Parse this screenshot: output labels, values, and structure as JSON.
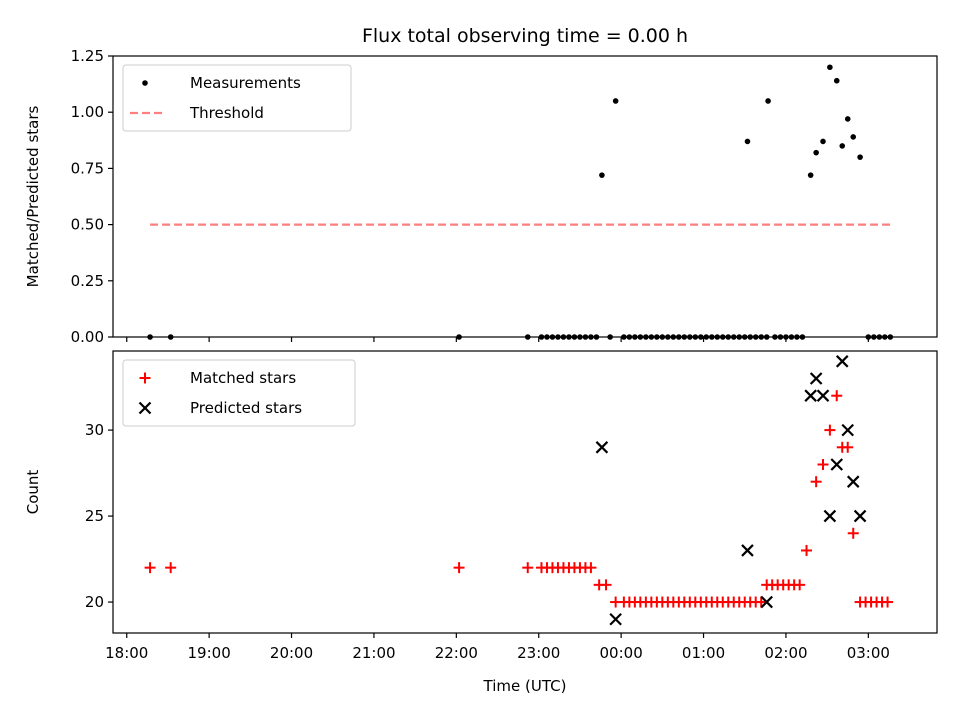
{
  "chart_data": [
    {
      "type": "scatter",
      "title": "Flux total observing time = 0.00 h",
      "xlabel": "",
      "ylabel": "Matched/Predicted stars",
      "xlim": [
        "17:50",
        "03:50"
      ],
      "ylim": [
        0,
        1.25
      ],
      "yticks": [
        "0.00",
        "0.25",
        "0.50",
        "0.75",
        "1.00",
        "1.25"
      ],
      "legend": {
        "placement": "upper-left",
        "entries": [
          "Measurements",
          "Threshold"
        ]
      },
      "colors": {
        "measurements": "#000000",
        "threshold": "#ff7f7f"
      },
      "series": [
        {
          "name": "Measurements",
          "marker": "dot",
          "points": [
            [
              "18:17",
              0
            ],
            [
              "18:32",
              0
            ],
            [
              "22:02",
              0
            ],
            [
              "22:52",
              0
            ],
            [
              "23:02",
              0
            ],
            [
              "23:06",
              0
            ],
            [
              "23:10",
              0
            ],
            [
              "23:14",
              0
            ],
            [
              "23:18",
              0
            ],
            [
              "23:22",
              0
            ],
            [
              "23:26",
              0
            ],
            [
              "23:30",
              0
            ],
            [
              "23:34",
              0
            ],
            [
              "23:38",
              0
            ],
            [
              "23:42",
              0
            ],
            [
              "23:46",
              0.72
            ],
            [
              "23:52",
              0
            ],
            [
              "23:56",
              1.05
            ],
            [
              "00:02",
              0
            ],
            [
              "00:06",
              0
            ],
            [
              "00:10",
              0
            ],
            [
              "00:14",
              0
            ],
            [
              "00:18",
              0
            ],
            [
              "00:22",
              0
            ],
            [
              "00:26",
              0
            ],
            [
              "00:30",
              0
            ],
            [
              "00:34",
              0
            ],
            [
              "00:38",
              0
            ],
            [
              "00:42",
              0
            ],
            [
              "00:46",
              0
            ],
            [
              "00:50",
              0
            ],
            [
              "00:54",
              0
            ],
            [
              "00:58",
              0
            ],
            [
              "01:02",
              0
            ],
            [
              "01:06",
              0
            ],
            [
              "01:10",
              0
            ],
            [
              "01:14",
              0
            ],
            [
              "01:18",
              0
            ],
            [
              "01:22",
              0
            ],
            [
              "01:26",
              0
            ],
            [
              "01:30",
              0
            ],
            [
              "01:34",
              0
            ],
            [
              "01:38",
              0
            ],
            [
              "01:32",
              0.87
            ],
            [
              "01:42",
              0
            ],
            [
              "01:46",
              0
            ],
            [
              "01:47",
              1.05
            ],
            [
              "01:52",
              0
            ],
            [
              "01:56",
              0
            ],
            [
              "02:00",
              0
            ],
            [
              "02:04",
              0
            ],
            [
              "02:08",
              0
            ],
            [
              "02:12",
              0
            ],
            [
              "02:18",
              0.72
            ],
            [
              "02:22",
              0.82
            ],
            [
              "02:27",
              0.87
            ],
            [
              "02:32",
              1.2
            ],
            [
              "02:37",
              1.14
            ],
            [
              "02:41",
              0.85
            ],
            [
              "02:45",
              0.97
            ],
            [
              "02:49",
              0.89
            ],
            [
              "02:54",
              0.8
            ],
            [
              "03:00",
              0
            ],
            [
              "03:04",
              0
            ],
            [
              "03:08",
              0
            ],
            [
              "03:12",
              0
            ],
            [
              "03:16",
              0
            ]
          ]
        },
        {
          "name": "Threshold",
          "marker": "dashed-line",
          "points": [
            [
              "18:17",
              0.5
            ],
            [
              "03:16",
              0.5
            ]
          ]
        }
      ]
    },
    {
      "type": "scatter",
      "title": "",
      "xlabel": "Time (UTC)",
      "ylabel": "Count",
      "xlim": [
        "17:50",
        "03:50"
      ],
      "ylim": [
        18.2,
        34.6
      ],
      "yticks": [
        "20",
        "25",
        "30"
      ],
      "xticks": [
        "18:00",
        "19:00",
        "20:00",
        "21:00",
        "22:00",
        "23:00",
        "00:00",
        "01:00",
        "02:00",
        "03:00"
      ],
      "legend": {
        "placement": "upper-left",
        "entries": [
          "Matched stars",
          "Predicted stars"
        ]
      },
      "colors": {
        "matched": "#ff0000",
        "predicted": "#000000"
      },
      "series": [
        {
          "name": "Matched stars",
          "marker": "plus",
          "points": [
            [
              "18:17",
              22
            ],
            [
              "18:32",
              22
            ],
            [
              "22:02",
              22
            ],
            [
              "22:52",
              22
            ],
            [
              "23:02",
              22
            ],
            [
              "23:06",
              22
            ],
            [
              "23:10",
              22
            ],
            [
              "23:14",
              22
            ],
            [
              "23:18",
              22
            ],
            [
              "23:22",
              22
            ],
            [
              "23:26",
              22
            ],
            [
              "23:30",
              22
            ],
            [
              "23:34",
              22
            ],
            [
              "23:38",
              22
            ],
            [
              "23:44",
              21
            ],
            [
              "23:49",
              21
            ],
            [
              "23:56",
              20
            ],
            [
              "00:02",
              20
            ],
            [
              "00:06",
              20
            ],
            [
              "00:10",
              20
            ],
            [
              "00:14",
              20
            ],
            [
              "00:18",
              20
            ],
            [
              "00:22",
              20
            ],
            [
              "00:26",
              20
            ],
            [
              "00:30",
              20
            ],
            [
              "00:34",
              20
            ],
            [
              "00:38",
              20
            ],
            [
              "00:42",
              20
            ],
            [
              "00:46",
              20
            ],
            [
              "00:50",
              20
            ],
            [
              "00:54",
              20
            ],
            [
              "00:58",
              20
            ],
            [
              "01:02",
              20
            ],
            [
              "01:06",
              20
            ],
            [
              "01:10",
              20
            ],
            [
              "01:14",
              20
            ],
            [
              "01:18",
              20
            ],
            [
              "01:22",
              20
            ],
            [
              "01:26",
              20
            ],
            [
              "01:30",
              20
            ],
            [
              "01:34",
              20
            ],
            [
              "01:38",
              20
            ],
            [
              "01:42",
              20
            ],
            [
              "01:46",
              21
            ],
            [
              "01:50",
              21
            ],
            [
              "01:54",
              21
            ],
            [
              "01:58",
              21
            ],
            [
              "02:02",
              21
            ],
            [
              "02:06",
              21
            ],
            [
              "02:10",
              21
            ],
            [
              "02:15",
              23
            ],
            [
              "02:22",
              27
            ],
            [
              "02:27",
              28
            ],
            [
              "02:32",
              30
            ],
            [
              "02:37",
              32
            ],
            [
              "02:41",
              29
            ],
            [
              "02:45",
              29
            ],
            [
              "02:49",
              24
            ],
            [
              "02:54",
              20
            ],
            [
              "02:58",
              20
            ],
            [
              "03:02",
              20
            ],
            [
              "03:06",
              20
            ],
            [
              "03:10",
              20
            ],
            [
              "03:14",
              20
            ]
          ]
        },
        {
          "name": "Predicted stars",
          "marker": "x",
          "points": [
            [
              "23:46",
              29
            ],
            [
              "23:56",
              19
            ],
            [
              "01:32",
              23
            ],
            [
              "01:46",
              20
            ],
            [
              "02:18",
              32
            ],
            [
              "02:22",
              33
            ],
            [
              "02:27",
              32
            ],
            [
              "02:32",
              25
            ],
            [
              "02:37",
              28
            ],
            [
              "02:41",
              34
            ],
            [
              "02:45",
              30
            ],
            [
              "02:49",
              27
            ],
            [
              "02:54",
              25
            ]
          ]
        }
      ]
    }
  ]
}
